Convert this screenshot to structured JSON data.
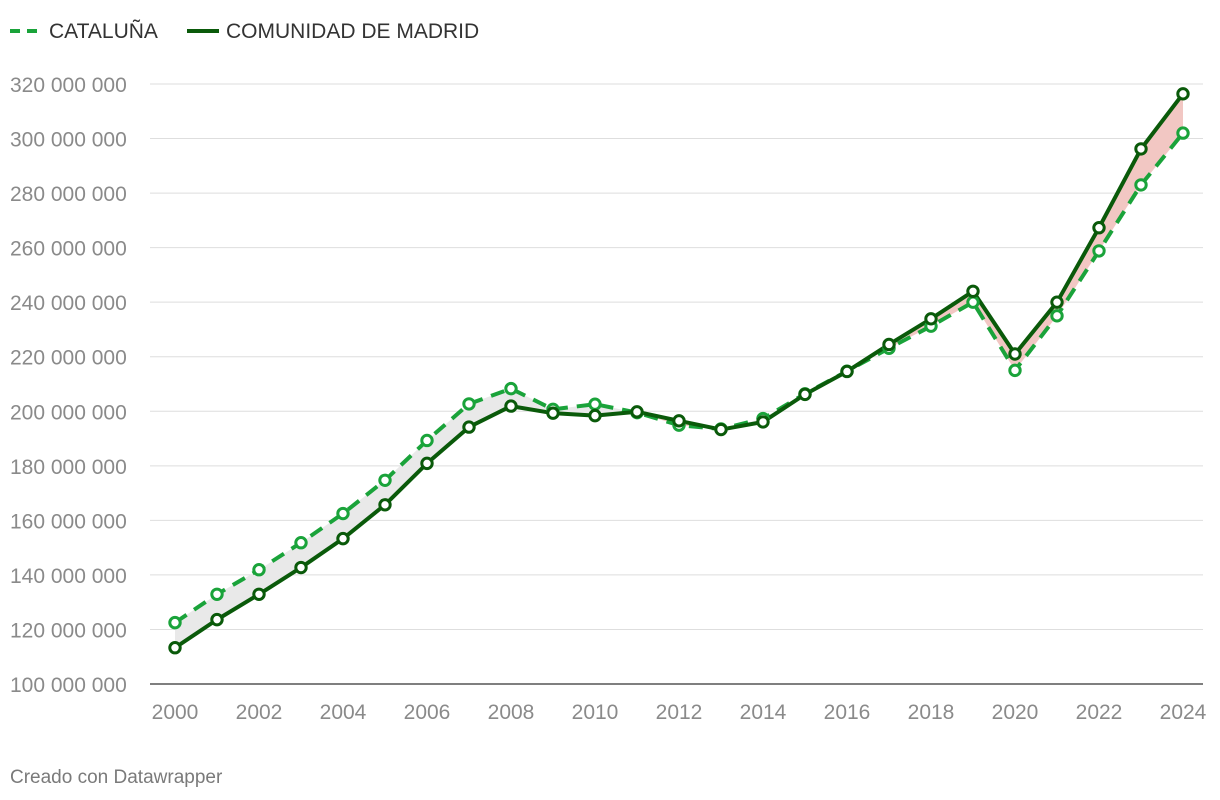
{
  "chart_data": {
    "type": "line",
    "title": "",
    "xlabel": "",
    "ylabel": "",
    "x": [
      2000,
      2001,
      2002,
      2003,
      2004,
      2005,
      2006,
      2007,
      2008,
      2009,
      2010,
      2011,
      2012,
      2013,
      2014,
      2015,
      2016,
      2017,
      2018,
      2019,
      2020,
      2021,
      2022,
      2023,
      2024
    ],
    "ylim": [
      100000000,
      320000000
    ],
    "grid": true,
    "legend_position": "top-left",
    "series": [
      {
        "name": "CATALUÑA",
        "style": "dashed",
        "color": "#1aa33a",
        "values": [
          122500000,
          132900000,
          141900000,
          151800000,
          162500000,
          174700000,
          189300000,
          202700000,
          208300000,
          200700000,
          202600000,
          199500000,
          194900000,
          193500000,
          197300000,
          206400000,
          214700000,
          223100000,
          231200000,
          240000000,
          215000000,
          235000000,
          258800000,
          283000000,
          302000000
        ]
      },
      {
        "name": "COMUNIDAD DE MADRID",
        "style": "solid",
        "color": "#0a5a0a",
        "values": [
          113300000,
          123600000,
          132900000,
          142700000,
          153300000,
          165700000,
          180900000,
          194200000,
          201900000,
          199300000,
          198400000,
          199800000,
          196500000,
          193300000,
          196100000,
          206200000,
          214600000,
          224500000,
          233900000,
          244000000,
          221000000,
          240000000,
          267300000,
          296200000,
          316400000
        ]
      }
    ],
    "x_tick_labels": [
      "2000",
      "2002",
      "2004",
      "2006",
      "2008",
      "2010",
      "2012",
      "2014",
      "2016",
      "2018",
      "2020",
      "2022",
      "2024"
    ],
    "y_tick_labels": [
      "100 000 000",
      "120 000 000",
      "140 000 000",
      "160 000 000",
      "180 000 000",
      "200 000 000",
      "220 000 000",
      "240 000 000",
      "260 000 000",
      "280 000 000",
      "300 000 000",
      "320 000 000"
    ],
    "fill_colors": {
      "catalunya_higher": "#e9e9e9",
      "madrid_higher": "#f2c7c3"
    }
  },
  "credit": "Creado con Datawrapper"
}
